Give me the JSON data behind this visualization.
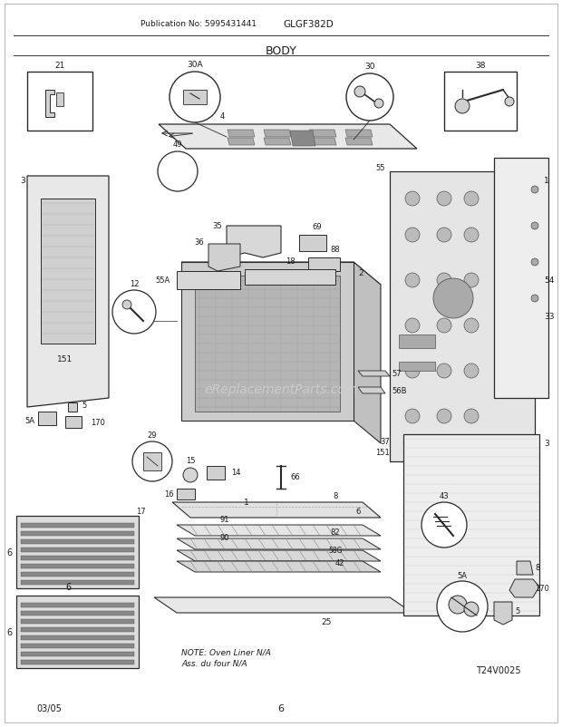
{
  "title": "BODY",
  "pub_no": "Publication No: 5995431441",
  "model": "GLGF382D",
  "date": "03/05",
  "page": "6",
  "diagram_id": "T24V0025",
  "note_line1": "NOTE: Oven Liner N/A",
  "note_line2": "Ass. du four N/A",
  "watermark": "eReplacementParts.com",
  "bg_color": "#ffffff",
  "lc": "#2a2a2a",
  "gray1": "#c8c8c8",
  "gray2": "#b0b0b0",
  "gray3": "#e0e0e0",
  "gray4": "#d0d0d0",
  "gray5": "#909090"
}
